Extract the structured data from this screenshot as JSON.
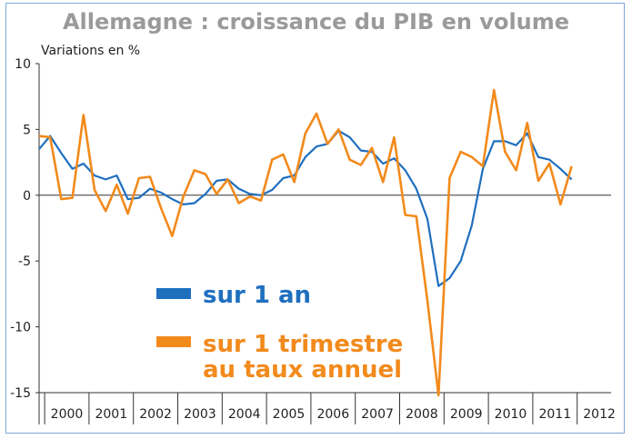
{
  "chart_data": {
    "type": "line",
    "title": "Allemagne : croissance du PIB en volume",
    "ylabel": "Variations en %",
    "ylim": [
      -15,
      10
    ],
    "yticks": [
      10,
      5,
      0,
      -5,
      -10,
      -15
    ],
    "year_labels": [
      "2000",
      "2001",
      "2002",
      "2003",
      "2004",
      "2005",
      "2006",
      "2007",
      "2008",
      "2009",
      "2010",
      "2011",
      "2012"
    ],
    "grid": false,
    "legend_position": "center-left",
    "x": [
      "1999T4",
      "2000T1",
      "2000T2",
      "2000T3",
      "2000T4",
      "2001T1",
      "2001T2",
      "2001T3",
      "2001T4",
      "2002T1",
      "2002T2",
      "2002T3",
      "2002T4",
      "2003T1",
      "2003T2",
      "2003T3",
      "2003T4",
      "2004T1",
      "2004T2",
      "2004T3",
      "2004T4",
      "2005T1",
      "2005T2",
      "2005T3",
      "2005T4",
      "2006T1",
      "2006T2",
      "2006T3",
      "2006T4",
      "2007T1",
      "2007T2",
      "2007T3",
      "2007T4",
      "2008T1",
      "2008T2",
      "2008T3",
      "2008T4",
      "2009T1",
      "2009T2",
      "2009T3",
      "2009T4",
      "2010T1",
      "2010T2",
      "2010T3",
      "2010T4",
      "2011T1",
      "2011T2",
      "2011T3",
      "2011T4"
    ],
    "series": [
      {
        "name": "sur 1 an",
        "color": "#1f6fbf",
        "values": [
          3.5,
          4.5,
          3.2,
          2.0,
          2.4,
          1.5,
          1.2,
          1.5,
          -0.3,
          -0.2,
          0.5,
          0.2,
          -0.3,
          -0.7,
          -0.6,
          0.1,
          1.1,
          1.2,
          0.5,
          0.1,
          0.0,
          0.4,
          1.3,
          1.5,
          2.9,
          3.7,
          3.9,
          4.9,
          4.4,
          3.4,
          3.3,
          2.4,
          2.8,
          1.9,
          0.5,
          -1.8,
          -6.9,
          -6.3,
          -5.0,
          -2.3,
          2.0,
          4.1,
          4.1,
          3.8,
          4.7,
          2.9,
          2.7,
          2.0,
          1.2
        ]
      },
      {
        "name": "sur 1 trimestre au taux annuel",
        "color": "#f28a1c",
        "values": [
          4.5,
          4.4,
          -0.3,
          -0.2,
          6.1,
          0.4,
          -1.2,
          0.8,
          -1.4,
          1.3,
          1.4,
          -1.0,
          -3.1,
          -0.1,
          1.9,
          1.6,
          0.1,
          1.2,
          -0.6,
          -0.1,
          -0.4,
          2.7,
          3.1,
          1.0,
          4.7,
          6.2,
          3.9,
          5.0,
          2.7,
          2.3,
          3.6,
          1.0,
          4.4,
          -1.5,
          -1.6,
          -8.0,
          -15.2,
          1.3,
          3.3,
          2.9,
          2.2,
          8.0,
          3.3,
          1.9,
          5.5,
          1.1,
          2.4,
          -0.7,
          2.2
        ]
      }
    ]
  },
  "legend": {
    "items": [
      {
        "label_line1": "sur 1 an",
        "label_line2": "",
        "color": "#1f6fbf"
      },
      {
        "label_line1": "sur 1 trimestre",
        "label_line2": "au taux annuel",
        "color": "#f28a1c"
      }
    ]
  }
}
